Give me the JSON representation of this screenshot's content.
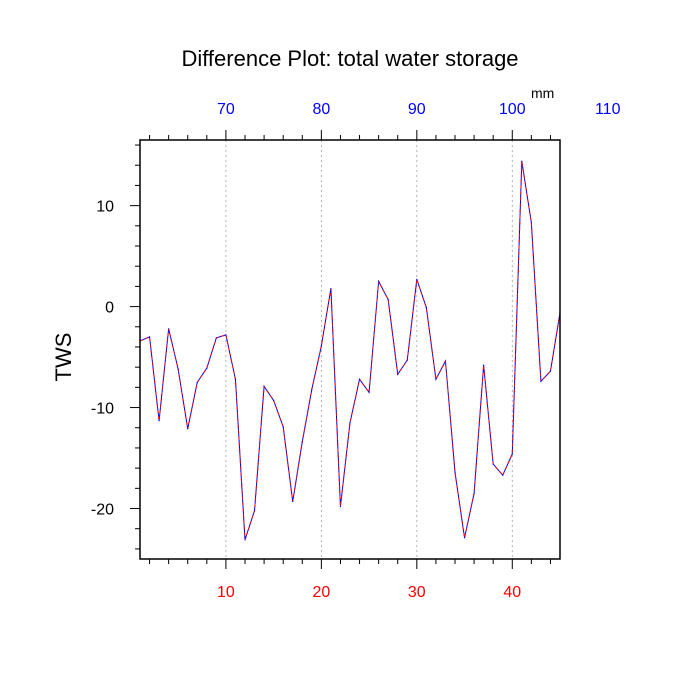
{
  "chart_data": {
    "type": "line",
    "title": "Difference Plot: total water storage",
    "units": "mm",
    "ylabel": "TWS",
    "xlabel": "",
    "xlim": [
      1,
      45
    ],
    "ylim": [
      -25,
      16.5
    ],
    "bottom_axis": {
      "ticks": [
        10,
        20,
        30,
        40
      ],
      "color": "#ff0000",
      "minor_step": 2
    },
    "top_axis": {
      "ticks": [
        70,
        80,
        90,
        100,
        110
      ],
      "offset": 60,
      "color": "#0000ff",
      "minor_step": 2
    },
    "y_ticks": [
      10,
      0,
      -10,
      -20
    ],
    "y_tick_labels": [
      "10",
      "0",
      "-10",
      "-20"
    ],
    "y_minor_step": 2,
    "grid": "vertical dashed at major x ticks",
    "series": [
      {
        "color": "#0000ff",
        "overlay_color": "#ff0000",
        "dashed_overlay": true,
        "x": [
          1,
          2,
          3,
          4,
          5,
          6,
          7,
          8,
          9,
          10,
          11,
          12,
          13,
          14,
          15,
          16,
          17,
          18,
          19,
          20,
          21,
          22,
          23,
          24,
          25,
          26,
          27,
          28,
          29,
          30,
          31,
          32,
          33,
          34,
          35,
          36,
          37,
          38,
          39,
          40,
          41,
          42,
          43,
          44,
          45
        ],
        "y": [
          -3.4,
          -3.0,
          -11.3,
          -2.2,
          -6.2,
          -12.1,
          -7.5,
          -6.1,
          -3.1,
          -2.8,
          -7.2,
          -23.1,
          -20.2,
          -7.9,
          -9.3,
          -11.9,
          -19.3,
          -13.4,
          -8.2,
          -3.9,
          1.8,
          -19.8,
          -11.5,
          -7.2,
          -8.5,
          2.5,
          0.7,
          -6.7,
          -5.3,
          2.7,
          -0.1,
          -7.2,
          -5.4,
          -16.4,
          -22.9,
          -18.5,
          -5.8,
          -15.6,
          -16.7,
          -14.6,
          14.4,
          8.3,
          -7.4,
          -6.4,
          -0.6
        ]
      }
    ]
  }
}
